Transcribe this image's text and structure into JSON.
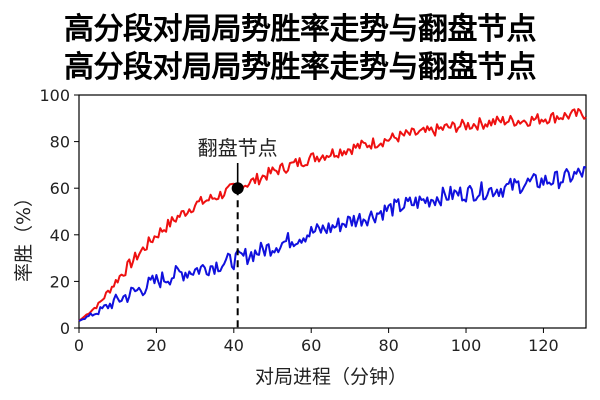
{
  "chart_data": {
    "type": "line",
    "title": "高分段对局局势胜率走势与翻盘节点",
    "subtitle": "高分段对局局势胜率走势与翻盘节点",
    "xlabel": "对局进程（分钟）",
    "ylabel": "率胜（%）",
    "xlim": [
      0,
      131
    ],
    "ylim": [
      0,
      100
    ],
    "xticks": [
      0,
      20,
      40,
      60,
      80,
      100,
      120
    ],
    "yticks": [
      0,
      20,
      40,
      60,
      80,
      100
    ],
    "grid": false,
    "legend": "none",
    "x": [
      0,
      5,
      10,
      15,
      20,
      25,
      30,
      35,
      40,
      45,
      50,
      55,
      60,
      65,
      70,
      75,
      80,
      85,
      90,
      95,
      100,
      105,
      110,
      115,
      120,
      125,
      131
    ],
    "series": [
      {
        "color": "#ee1111",
        "values": [
          3,
          10,
          21,
          31,
          40,
          47,
          53,
          56,
          60,
          63,
          67,
          70,
          73,
          75,
          77,
          79,
          81,
          83,
          84,
          86,
          87,
          88,
          89,
          89,
          90,
          91,
          92
        ]
      },
      {
        "color": "#1111dd",
        "values": [
          3,
          7,
          12,
          16,
          20,
          23,
          25,
          27,
          29,
          32,
          35,
          38,
          41,
          43,
          46,
          48,
          51,
          53,
          55,
          57,
          58,
          59,
          60,
          62,
          63,
          64,
          67
        ]
      }
    ],
    "annotation": {
      "label": "翻盘节点",
      "x": 41,
      "y": 60
    }
  }
}
